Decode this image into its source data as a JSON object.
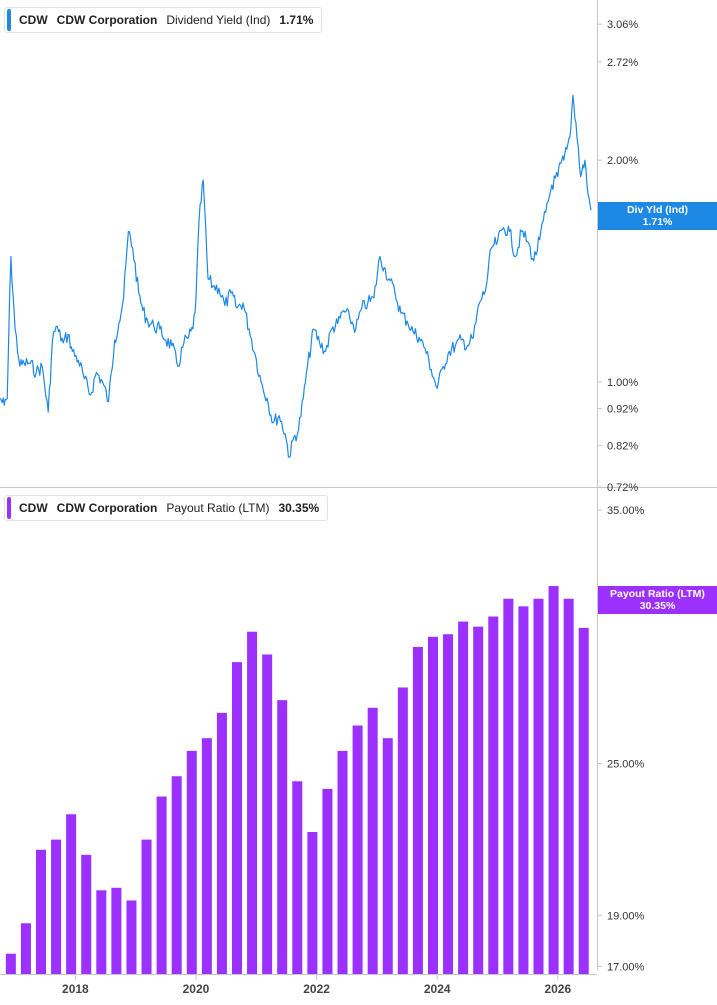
{
  "colors": {
    "yield": "#1e88e5",
    "payout": "#9b30ff",
    "axis": "#c8c8c8",
    "text": "#333333"
  },
  "panels": {
    "yield": {
      "symbol": "CDW",
      "company": "CDW Corporation",
      "metric": "Dividend Yield (Ind)",
      "value": "1.71%",
      "badge_title": "Div Yld (Ind)",
      "badge_value": "1.71%"
    },
    "payout": {
      "symbol": "CDW",
      "company": "CDW Corporation",
      "metric": "Payout Ratio (LTM)",
      "value": "30.35%",
      "badge_title": "Payout Ratio (LTM)",
      "badge_value": "30.35%"
    }
  },
  "chart_data": [
    {
      "type": "line",
      "title": "CDW Corporation Dividend Yield (Ind)",
      "y_scale": "log",
      "ylim": [
        0.72,
        3.3
      ],
      "xlim": [
        2016.75,
        2026.65
      ],
      "y_ticks": [
        "3.06%",
        "2.72%",
        "2.00%",
        "1.00%",
        "0.92%",
        "0.82%",
        "0.72%"
      ],
      "y_tick_values": [
        3.06,
        2.72,
        2.0,
        1.0,
        0.92,
        0.82,
        0.72
      ],
      "series": [
        {
          "values_x": [
            2016.75,
            2016.82,
            2016.87,
            2016.93,
            2017.0,
            2017.08,
            2017.15,
            2017.25,
            2017.35,
            2017.45,
            2017.55,
            2017.62,
            2017.68,
            2017.72,
            2017.8,
            2017.88,
            2017.95,
            2018.05,
            2018.15,
            2018.25,
            2018.35,
            2018.45,
            2018.55,
            2018.65,
            2018.72,
            2018.8,
            2018.88,
            2018.95,
            2019.05,
            2019.12,
            2019.2,
            2019.3,
            2019.4,
            2019.5,
            2019.6,
            2019.7,
            2019.8,
            2019.88,
            2019.95,
            2020.0,
            2020.05,
            2020.12,
            2020.2,
            2020.28,
            2020.38,
            2020.48,
            2020.58,
            2020.68,
            2020.78,
            2020.88,
            2020.98,
            2021.08,
            2021.18,
            2021.28,
            2021.38,
            2021.48,
            2021.55,
            2021.62,
            2021.7,
            2021.78,
            2021.85,
            2021.95,
            2022.05,
            2022.15,
            2022.25,
            2022.35,
            2022.45,
            2022.55,
            2022.65,
            2022.75,
            2022.85,
            2022.95,
            2023.05,
            2023.12,
            2023.2,
            2023.3,
            2023.4,
            2023.5,
            2023.6,
            2023.7,
            2023.8,
            2023.9,
            2024.0,
            2024.1,
            2024.2,
            2024.3,
            2024.4,
            2024.5,
            2024.6,
            2024.7,
            2024.8,
            2024.9,
            2025.0,
            2025.1,
            2025.2,
            2025.3,
            2025.4,
            2025.5,
            2025.6,
            2025.7,
            2025.8,
            2025.9,
            2026.0,
            2026.05,
            2026.1,
            2026.15,
            2026.2,
            2026.25,
            2026.3,
            2026.38,
            2026.45,
            2026.5,
            2026.55
          ],
          "values_y": [
            0.95,
            0.93,
            0.95,
            1.48,
            1.18,
            1.05,
            1.06,
            1.06,
            1.03,
            1.05,
            0.91,
            1.14,
            1.19,
            1.17,
            1.13,
            1.16,
            1.1,
            1.07,
            1.01,
            0.96,
            1.03,
            1.0,
            0.94,
            1.14,
            1.2,
            1.3,
            1.6,
            1.52,
            1.32,
            1.25,
            1.21,
            1.19,
            1.18,
            1.14,
            1.12,
            1.05,
            1.13,
            1.15,
            1.18,
            1.3,
            1.65,
            1.88,
            1.38,
            1.35,
            1.34,
            1.27,
            1.32,
            1.26,
            1.28,
            1.18,
            1.09,
            1.0,
            0.95,
            0.88,
            0.9,
            0.85,
            0.79,
            0.84,
            0.86,
            0.95,
            1.05,
            1.18,
            1.13,
            1.1,
            1.18,
            1.2,
            1.25,
            1.22,
            1.18,
            1.26,
            1.28,
            1.3,
            1.48,
            1.43,
            1.38,
            1.32,
            1.24,
            1.21,
            1.17,
            1.15,
            1.11,
            1.04,
            0.98,
            1.05,
            1.1,
            1.12,
            1.14,
            1.12,
            1.15,
            1.28,
            1.33,
            1.52,
            1.55,
            1.62,
            1.6,
            1.48,
            1.6,
            1.55,
            1.46,
            1.56,
            1.7,
            1.85,
            1.9,
            1.98,
            2.0,
            2.07,
            2.15,
            2.45,
            2.25,
            1.9,
            2.0,
            1.8,
            1.71
          ]
        }
      ]
    },
    {
      "type": "bar",
      "title": "CDW Corporation Payout Ratio (LTM)",
      "ylim": [
        16.7,
        35.0
      ],
      "xlim": [
        2016.75,
        2026.65
      ],
      "y_ticks": [
        "35.00%",
        "25.00%",
        "19.00%",
        "17.00%"
      ],
      "y_tick_values": [
        35.0,
        25.0,
        19.0,
        17.0
      ],
      "x_ticks": [
        "2018",
        "2020",
        "2022",
        "2024",
        "2026"
      ],
      "x_tick_values": [
        2018,
        2020,
        2022,
        2024,
        2026
      ],
      "bar_x": [
        2016.93,
        2017.18,
        2017.43,
        2017.68,
        2017.93,
        2018.18,
        2018.43,
        2018.68,
        2018.93,
        2019.18,
        2019.43,
        2019.68,
        2019.93,
        2020.18,
        2020.43,
        2020.68,
        2020.93,
        2021.18,
        2021.43,
        2021.68,
        2021.93,
        2022.18,
        2022.43,
        2022.68,
        2022.93,
        2023.18,
        2023.43,
        2023.68,
        2023.93,
        2024.18,
        2024.43,
        2024.68,
        2024.93,
        2025.18,
        2025.43,
        2025.68,
        2025.93,
        2026.18,
        2026.43
      ],
      "values": [
        17.5,
        18.7,
        21.6,
        22.0,
        23.0,
        21.4,
        20.0,
        20.1,
        19.6,
        22.0,
        23.7,
        24.5,
        25.5,
        26.0,
        27.0,
        29.0,
        30.2,
        29.3,
        27.5,
        24.3,
        22.3,
        24.0,
        25.5,
        26.5,
        27.2,
        26.0,
        28.0,
        29.6,
        30.0,
        30.1,
        30.6,
        30.4,
        30.8,
        31.5,
        31.2,
        31.5,
        32.0,
        31.5,
        30.35
      ]
    }
  ]
}
